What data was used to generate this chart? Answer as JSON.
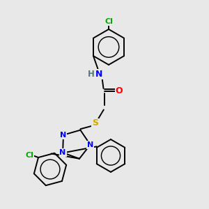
{
  "background_color": "#e8e8e8",
  "bond_color": "#000000",
  "atom_colors": {
    "N": "#0000ff",
    "O": "#ff0000",
    "S": "#ccaa00",
    "Cl": "#00aa00",
    "C": "#000000",
    "H": "#557777"
  },
  "figsize": [
    3.0,
    3.0
  ],
  "dpi": 100
}
